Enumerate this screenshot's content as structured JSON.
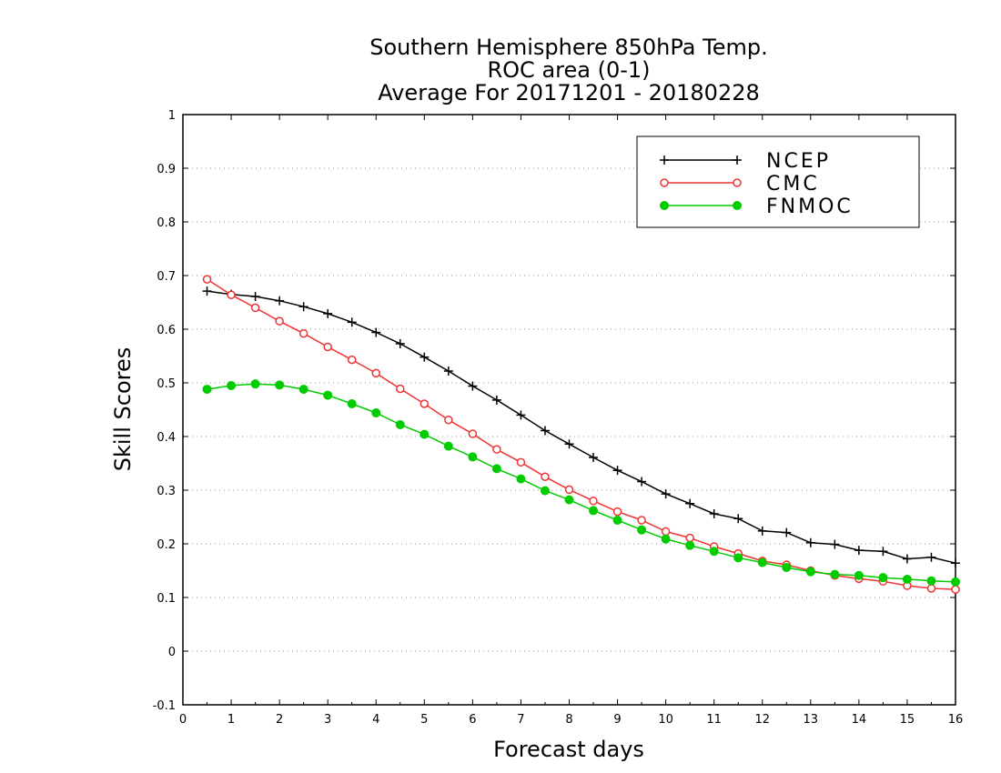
{
  "chart_data": {
    "type": "line",
    "title": [
      "Southern Hemisphere 850hPa Temp.",
      "ROC area (0-1)",
      "Average For 20171201 - 20180228"
    ],
    "xlabel": "Forecast days",
    "ylabel": "Skill Scores",
    "xlim": [
      0,
      16
    ],
    "ylim": [
      -0.1,
      1
    ],
    "xticks": [
      "0",
      "1",
      "2",
      "3",
      "4",
      "5",
      "6",
      "7",
      "8",
      "9",
      "10",
      "11",
      "12",
      "13",
      "14",
      "15",
      "16"
    ],
    "yticks": [
      "-0.1",
      "0",
      "0.1",
      "0.2",
      "0.3",
      "0.4",
      "0.5",
      "0.6",
      "0.7",
      "0.8",
      "0.9",
      "1"
    ],
    "grid": true,
    "legend_position": "top-right",
    "x": [
      0.5,
      1.0,
      1.5,
      2.0,
      2.5,
      3.0,
      3.5,
      4.0,
      4.5,
      5.0,
      5.5,
      6.0,
      6.5,
      7.0,
      7.5,
      8.0,
      8.5,
      9.0,
      9.5,
      10.0,
      10.5,
      11.0,
      11.5,
      12.0,
      12.5,
      13.0,
      13.5,
      14.0,
      14.5,
      15.0,
      15.5,
      16.0
    ],
    "series": [
      {
        "name": "NCEP",
        "color": "#000000",
        "marker": "plus",
        "values": [
          0.671,
          0.665,
          0.661,
          0.653,
          0.642,
          0.629,
          0.613,
          0.594,
          0.573,
          0.548,
          0.522,
          0.494,
          0.468,
          0.44,
          0.411,
          0.386,
          0.361,
          0.337,
          0.316,
          0.293,
          0.275,
          0.256,
          0.247,
          0.224,
          0.221,
          0.202,
          0.199,
          0.188,
          0.186,
          0.172,
          0.175,
          0.164
        ]
      },
      {
        "name": "CMC",
        "color": "#ee3333",
        "marker": "open-circle",
        "values": [
          0.693,
          0.664,
          0.64,
          0.615,
          0.592,
          0.567,
          0.543,
          0.518,
          0.489,
          0.461,
          0.431,
          0.405,
          0.376,
          0.352,
          0.325,
          0.301,
          0.28,
          0.26,
          0.244,
          0.223,
          0.211,
          0.195,
          0.182,
          0.168,
          0.161,
          0.15,
          0.141,
          0.135,
          0.13,
          0.122,
          0.117,
          0.115
        ]
      },
      {
        "name": "FNMOC",
        "color": "#00cc00",
        "marker": "filled-circle",
        "values": [
          0.488,
          0.495,
          0.498,
          0.496,
          0.488,
          0.477,
          0.461,
          0.444,
          0.422,
          0.404,
          0.382,
          0.362,
          0.34,
          0.321,
          0.299,
          0.282,
          0.262,
          0.244,
          0.226,
          0.209,
          0.197,
          0.186,
          0.174,
          0.165,
          0.156,
          0.148,
          0.143,
          0.141,
          0.137,
          0.134,
          0.131,
          0.129
        ]
      }
    ]
  }
}
